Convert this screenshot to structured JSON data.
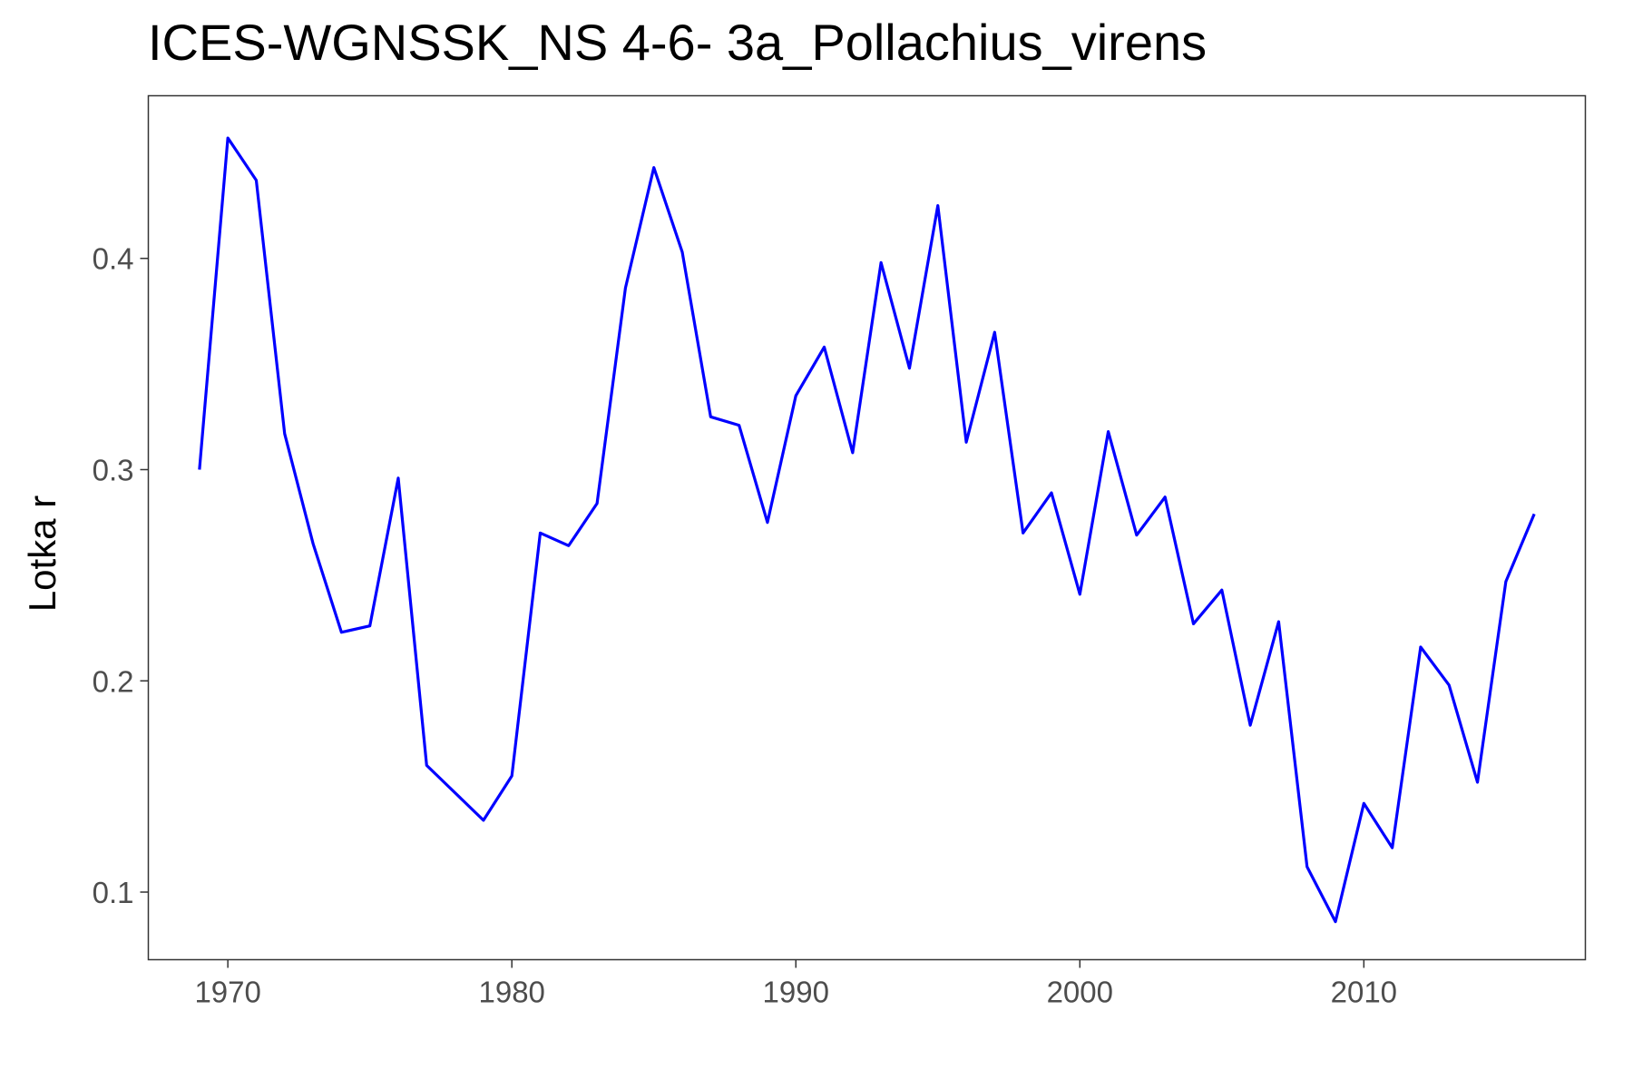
{
  "chart_data": {
    "type": "line",
    "title": "ICES-WGNSSK_NS 4-6- 3a_Pollachius_virens",
    "xlabel": "",
    "ylabel": "Lotka r",
    "xlim": [
      1967.2,
      2017.8
    ],
    "ylim": [
      0.068,
      0.477
    ],
    "xticks": [
      1970,
      1980,
      1990,
      2000,
      2010
    ],
    "yticks": [
      0.1,
      0.2,
      0.3,
      0.4
    ],
    "grid": false,
    "line_color": "#0000ff",
    "series": [
      {
        "x": [
          1969,
          1970,
          1971,
          1972,
          1973,
          1974,
          1975,
          1976,
          1977,
          1978,
          1979,
          1980,
          1981,
          1982,
          1983,
          1984,
          1985,
          1986,
          1987,
          1988,
          1989,
          1990,
          1991,
          1992,
          1993,
          1994,
          1995,
          1996,
          1997,
          1998,
          1999,
          2000,
          2001,
          2002,
          2003,
          2004,
          2005,
          2006,
          2007,
          2008,
          2009,
          2010,
          2011,
          2012,
          2013,
          2014,
          2015,
          2016
        ],
        "values": [
          0.3,
          0.457,
          0.437,
          0.317,
          0.265,
          0.223,
          0.226,
          0.296,
          0.16,
          0.147,
          0.134,
          0.155,
          0.27,
          0.264,
          0.284,
          0.386,
          0.443,
          0.403,
          0.325,
          0.321,
          0.275,
          0.335,
          0.358,
          0.308,
          0.398,
          0.348,
          0.425,
          0.313,
          0.365,
          0.27,
          0.289,
          0.241,
          0.318,
          0.269,
          0.287,
          0.227,
          0.243,
          0.179,
          0.228,
          0.112,
          0.086,
          0.142,
          0.121,
          0.216,
          0.198,
          0.152,
          0.247,
          0.279
        ]
      }
    ]
  }
}
